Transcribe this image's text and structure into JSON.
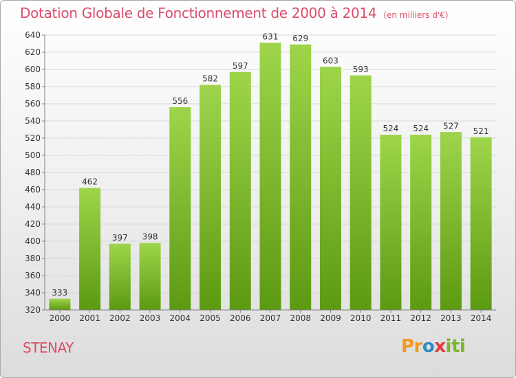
{
  "title": "Dotation Globale de Fonctionnement de 2000 à 2014",
  "unit_note": "(en milliers d'€)",
  "place": "STENAY",
  "logo": {
    "text": "Proxiti",
    "parts": [
      "Pr",
      "o",
      "x",
      "iti"
    ],
    "colors": [
      "#f29a1f",
      "#2b8cc4",
      "#e03a3a",
      "#7ab72c"
    ]
  },
  "colors": {
    "bar_top": "#9ed54a",
    "bar_bottom": "#5c9a12",
    "title": "#dc4d6a"
  },
  "chart_data": {
    "type": "bar",
    "title": "Dotation Globale de Fonctionnement de 2000 à 2014",
    "subtitle": "(en milliers d'€)",
    "xlabel": "",
    "ylabel": "",
    "categories": [
      "2000",
      "2001",
      "2002",
      "2003",
      "2004",
      "2005",
      "2006",
      "2007",
      "2008",
      "2009",
      "2010",
      "2011",
      "2012",
      "2013",
      "2014"
    ],
    "values": [
      333,
      462,
      397,
      398,
      556,
      582,
      597,
      631,
      629,
      603,
      593,
      524,
      524,
      527,
      521
    ],
    "ylim": [
      320,
      640
    ],
    "yticks": [
      320,
      340,
      360,
      380,
      400,
      420,
      440,
      460,
      480,
      500,
      520,
      540,
      560,
      580,
      600,
      620,
      640
    ],
    "grid": true,
    "legend": "none"
  }
}
